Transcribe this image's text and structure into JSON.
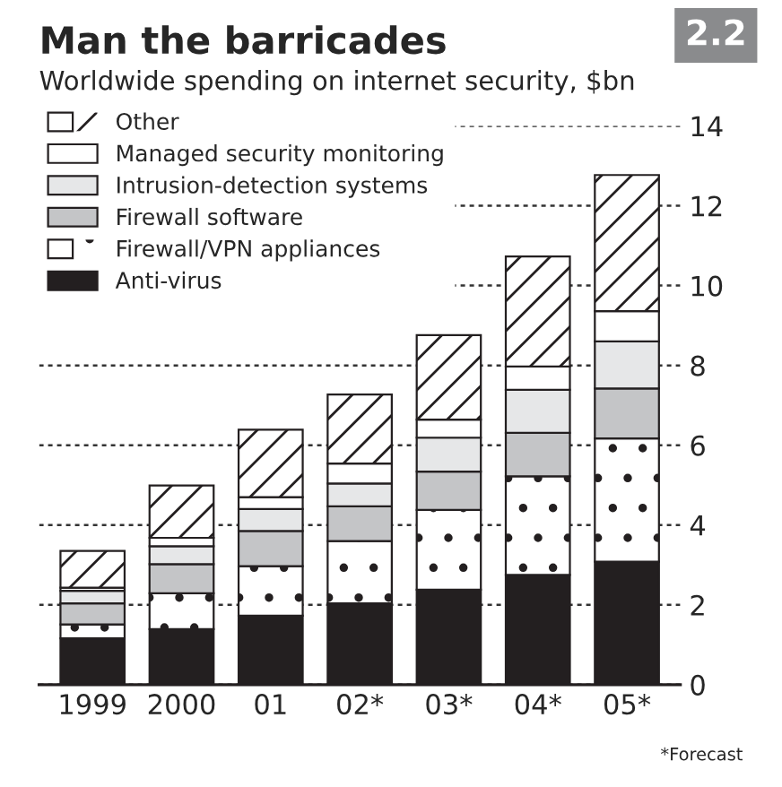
{
  "chart_data": {
    "type": "bar",
    "stacked": true,
    "title": "Man the barricades",
    "subtitle": "Worldwide spending on internet security, $bn",
    "annotations": [
      "2.2",
      "*Forecast"
    ],
    "categories": [
      "1999",
      "2000",
      "01",
      "02*",
      "03*",
      "04*",
      "05*"
    ],
    "series": [
      {
        "name": "Anti-virus",
        "color": "#231f20",
        "values": [
          1.16,
          1.39,
          1.73,
          2.04,
          2.38,
          2.75,
          3.08
        ]
      },
      {
        "name": "Firewall/VPN appliances",
        "color": "#ffffff",
        "values": [
          0.35,
          0.9,
          1.24,
          1.56,
          2.0,
          2.47,
          3.09
        ]
      },
      {
        "name": "Firewall software",
        "color": "#c4c5c7",
        "values": [
          0.53,
          0.73,
          0.88,
          0.87,
          0.96,
          1.09,
          1.25
        ]
      },
      {
        "name": "Intrusion-detection systems",
        "color": "#e6e7e8",
        "values": [
          0.31,
          0.45,
          0.55,
          0.57,
          0.85,
          1.08,
          1.18
        ]
      },
      {
        "name": "Managed security monitoring",
        "color": "#ffffff",
        "values": [
          0.08,
          0.21,
          0.3,
          0.5,
          0.45,
          0.58,
          0.76
        ]
      },
      {
        "name": "Other",
        "color": "#ffffff",
        "values": [
          0.92,
          1.31,
          1.69,
          1.73,
          2.12,
          2.76,
          3.41
        ]
      }
    ],
    "ylim": [
      0,
      14
    ],
    "yticks": [
      0,
      2,
      4,
      6,
      8,
      10,
      12,
      14
    ],
    "grid": "y",
    "legend": "top left"
  }
}
